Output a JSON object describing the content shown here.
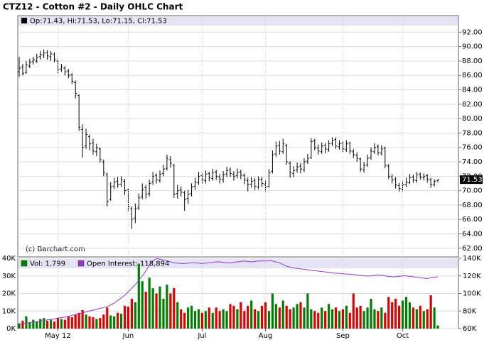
{
  "chart_data": [
    {
      "type": "ohlc",
      "title": "CTZ12 - Cotton #2 - Daily OHLC Chart",
      "info": "Op:71.43, Hi:71.53, Lo:71.15, Cl:71.53",
      "credit": "(c) Barchart.com",
      "color": "#000000",
      "grid": true,
      "ylim": [
        60.8,
        94.3
      ],
      "yticks": [
        {
          "value": 62,
          "label": "62.00"
        },
        {
          "value": 64,
          "label": "64.00"
        },
        {
          "value": 66,
          "label": "66.00"
        },
        {
          "value": 68,
          "label": "68.00"
        },
        {
          "value": 70,
          "label": "70.00"
        },
        {
          "value": 72,
          "label": "72.00"
        },
        {
          "value": 74,
          "label": "74.00"
        },
        {
          "value": 76,
          "label": "76.00"
        },
        {
          "value": 78,
          "label": "78.00"
        },
        {
          "value": 80,
          "label": "80.00"
        },
        {
          "value": 82,
          "label": "82.00"
        },
        {
          "value": 84,
          "label": "84.00"
        },
        {
          "value": 86,
          "label": "86.00"
        },
        {
          "value": 88,
          "label": "88.00"
        },
        {
          "value": 90,
          "label": "90.00"
        },
        {
          "value": 92,
          "label": "92.00"
        }
      ],
      "open": [
        86.5,
        87.2,
        86.4,
        87.3,
        87.9,
        88.0,
        88.6,
        88.8,
        89.2,
        88.6,
        88.9,
        88.0,
        86.9,
        87.0,
        86.6,
        86.1,
        85.0,
        83.2,
        78.5,
        76.2,
        77.5,
        76.6,
        75.4,
        75.8,
        74.0,
        72.2,
        68.8,
        70.6,
        71.3,
        70.9,
        71.3,
        70.1,
        67.5,
        66.2,
        67.6,
        69.2,
        70.4,
        69.6,
        71.2,
        72.1,
        71.4,
        72.4,
        73.1,
        74.3,
        73.5,
        69.6,
        70.1,
        69.7,
        68.9,
        69.6,
        70.6,
        71.1,
        72.1,
        71.4,
        72.4,
        71.7,
        72.6,
        71.9,
        71.5,
        72.3,
        72.9,
        72.3,
        72.1,
        72.6,
        72.1,
        71.4,
        70.9,
        71.4,
        70.5,
        71.6,
        70.9,
        70.6,
        72.7,
        75.1,
        76.3,
        75.4,
        76.3,
        73.8,
        72.4,
        72.9,
        73.4,
        72.9,
        74.1,
        74.6,
        76.9,
        75.9,
        75.4,
        76.3,
        75.7,
        76.6,
        77.1,
        76.1,
        76.6,
        75.7,
        76.6,
        75.4,
        74.9,
        74.4,
        72.9,
        73.6,
        74.6,
        75.4,
        76.1,
        75.2,
        75.9,
        73.4,
        71.9,
        71.6,
        70.7,
        70.2,
        70.9,
        71.1,
        71.9,
        71.4,
        72.3,
        71.8,
        72.1,
        71.5,
        70.8,
        71.43
      ],
      "high": [
        88.6,
        87.6,
        88.0,
        88.3,
        88.6,
        89.0,
        89.4,
        89.6,
        89.5,
        89.4,
        89.2,
        88.2,
        87.6,
        87.3,
        86.9,
        86.3,
        85.3,
        83.4,
        79.2,
        78.6,
        77.8,
        77.2,
        76.5,
        76.0,
        74.3,
        72.5,
        71.2,
        71.8,
        71.9,
        72.0,
        71.6,
        70.3,
        67.8,
        68.2,
        69.6,
        71.0,
        70.8,
        71.5,
        72.6,
        72.4,
        72.8,
        73.6,
        75.0,
        74.8,
        73.7,
        70.8,
        70.6,
        70.0,
        70.1,
        71.0,
        71.8,
        72.6,
        72.5,
        72.8,
        72.6,
        73.0,
        72.9,
        72.3,
        72.7,
        73.3,
        73.2,
        72.7,
        73.1,
        72.9,
        72.4,
        71.8,
        71.9,
        71.7,
        72.0,
        71.9,
        71.4,
        73.0,
        75.6,
        76.8,
        76.9,
        77.2,
        76.5,
        74.1,
        73.4,
        73.9,
        73.8,
        74.5,
        75.1,
        77.3,
        77.2,
        76.4,
        76.7,
        76.6,
        77.0,
        77.4,
        77.4,
        77.0,
        76.9,
        77.0,
        76.8,
        75.8,
        75.3,
        74.6,
        74.0,
        75.0,
        76.0,
        76.6,
        76.4,
        76.3,
        76.1,
        73.7,
        72.3,
        71.9,
        71.1,
        71.3,
        71.8,
        72.3,
        72.2,
        72.6,
        72.5,
        72.4,
        72.3,
        71.8,
        71.6,
        71.53
      ],
      "low": [
        85.8,
        86.0,
        86.2,
        87.0,
        87.5,
        87.7,
        88.2,
        88.4,
        88.2,
        88.0,
        87.8,
        86.3,
        86.5,
        86.0,
        85.6,
        84.8,
        82.8,
        78.3,
        74.6,
        75.8,
        75.6,
        75.0,
        74.8,
        73.9,
        72.0,
        67.8,
        68.6,
        70.2,
        70.4,
        70.5,
        69.4,
        67.2,
        64.7,
        65.5,
        67.3,
        68.8,
        68.9,
        69.2,
        70.8,
        71.0,
        71.1,
        72.0,
        72.8,
        73.2,
        69.0,
        68.9,
        69.2,
        67.2,
        68.2,
        69.2,
        70.1,
        70.8,
        71.0,
        71.0,
        71.3,
        71.4,
        71.5,
        71.0,
        71.1,
        71.9,
        71.9,
        71.4,
        71.7,
        71.6,
        70.9,
        69.9,
        70.4,
        70.1,
        70.2,
        70.5,
        69.9,
        70.4,
        72.4,
        74.7,
        75.0,
        75.1,
        73.6,
        71.8,
        71.9,
        72.5,
        72.4,
        72.6,
        73.7,
        74.4,
        75.6,
        75.0,
        75.1,
        75.2,
        75.4,
        76.2,
        75.8,
        75.7,
        75.3,
        75.4,
        75.1,
        74.5,
        74.0,
        72.6,
        72.5,
        73.3,
        74.3,
        75.1,
        74.9,
        74.9,
        73.1,
        71.6,
        71.0,
        70.3,
        69.9,
        69.9,
        70.5,
        70.9,
        71.1,
        71.1,
        71.5,
        71.4,
        71.1,
        70.4,
        70.6,
        71.15
      ],
      "close": [
        87.0,
        86.3,
        87.5,
        87.8,
        88.2,
        88.5,
        88.9,
        89.1,
        88.7,
        89.0,
        88.2,
        86.8,
        87.2,
        86.5,
        86.0,
        85.2,
        83.5,
        78.8,
        76.0,
        77.8,
        76.5,
        75.5,
        76.0,
        74.3,
        72.5,
        68.5,
        70.5,
        71.2,
        70.8,
        71.5,
        70.0,
        67.8,
        66.0,
        67.5,
        69.0,
        70.2,
        69.5,
        71.0,
        72.0,
        71.5,
        72.3,
        73.0,
        74.5,
        73.8,
        69.5,
        70.0,
        69.8,
        68.8,
        69.5,
        70.5,
        71.2,
        72.0,
        71.5,
        72.3,
        71.8,
        72.5,
        72.0,
        71.6,
        72.2,
        72.8,
        72.4,
        72.0,
        72.5,
        72.2,
        71.5,
        70.8,
        71.3,
        70.6,
        71.5,
        71.0,
        70.5,
        72.5,
        75.0,
        76.2,
        75.5,
        76.5,
        74.0,
        72.5,
        72.8,
        73.3,
        73.0,
        74.0,
        74.5,
        76.8,
        76.0,
        75.5,
        76.2,
        75.8,
        76.5,
        77.0,
        76.2,
        76.5,
        75.8,
        76.5,
        75.5,
        75.0,
        74.5,
        73.0,
        73.5,
        74.5,
        75.5,
        76.0,
        75.3,
        75.8,
        73.5,
        72.0,
        71.5,
        70.8,
        70.3,
        70.8,
        71.2,
        71.8,
        71.5,
        72.2,
        71.9,
        72.0,
        71.6,
        70.9,
        71.3,
        71.53
      ]
    },
    {
      "type": "volume",
      "up_color": "#008000",
      "down_color": "#e00000",
      "categories": [
        null,
        null,
        null,
        null,
        null,
        null,
        null,
        null,
        null,
        null,
        null,
        "May 12",
        null,
        null,
        null,
        null,
        null,
        null,
        null,
        null,
        null,
        null,
        null,
        null,
        null,
        null,
        null,
        null,
        null,
        null,
        null,
        "Jun",
        null,
        null,
        null,
        null,
        null,
        null,
        null,
        null,
        null,
        null,
        null,
        null,
        null,
        null,
        null,
        null,
        null,
        null,
        null,
        null,
        "Jul",
        null,
        null,
        null,
        null,
        null,
        null,
        null,
        null,
        null,
        null,
        null,
        null,
        null,
        null,
        null,
        null,
        null,
        "Aug",
        null,
        null,
        null,
        null,
        null,
        null,
        null,
        null,
        null,
        null,
        null,
        null,
        null,
        null,
        null,
        null,
        null,
        null,
        null,
        null,
        null,
        "Sep",
        null,
        null,
        null,
        null,
        null,
        null,
        null,
        null,
        null,
        null,
        null,
        null,
        null,
        null,
        null,
        null,
        "Oct",
        null,
        null,
        null,
        null,
        null,
        null,
        null,
        null,
        null,
        null
      ],
      "ylim": [
        0,
        40000
      ],
      "yticks": [
        {
          "value": 0,
          "label": "0K"
        },
        {
          "value": 10000,
          "label": "10K"
        },
        {
          "value": 20000,
          "label": "20K"
        },
        {
          "value": 30000,
          "label": "30K"
        },
        {
          "value": 40000,
          "label": "40K"
        }
      ],
      "y2lim": [
        60000,
        140000
      ],
      "y2ticks": [
        {
          "value": 60000,
          "label": "60K"
        },
        {
          "value": 80000,
          "label": "80K"
        },
        {
          "value": 100000,
          "label": "100K"
        },
        {
          "value": 120000,
          "label": "120K"
        },
        {
          "value": 140000,
          "label": "140K"
        }
      ],
      "series": [
        {
          "name": "Vol: 1,799",
          "color": "#008000",
          "values": [
            3000,
            4500,
            7000,
            3500,
            5000,
            4000,
            5500,
            6000,
            4500,
            5000,
            4000,
            6000,
            5500,
            5000,
            7000,
            6500,
            8000,
            9000,
            10500,
            8000,
            7000,
            6500,
            5500,
            6000,
            8000,
            12000,
            7500,
            7000,
            9000,
            8500,
            13000,
            12500,
            17000,
            15000,
            37000,
            27000,
            21000,
            29000,
            23000,
            20000,
            24000,
            17000,
            25000,
            20000,
            23000,
            15000,
            11000,
            9000,
            12000,
            13000,
            10000,
            11000,
            9000,
            10000,
            12000,
            9000,
            12000,
            10000,
            11000,
            10000,
            14000,
            13000,
            11000,
            15000,
            10000,
            13000,
            16000,
            11000,
            10000,
            13000,
            15000,
            10000,
            20000,
            14000,
            12000,
            16000,
            13000,
            11000,
            12000,
            14000,
            15000,
            12000,
            20000,
            11000,
            10000,
            9000,
            12000,
            10000,
            14000,
            11000,
            12000,
            10000,
            11000,
            13000,
            9000,
            20000,
            12000,
            13000,
            10000,
            12000,
            17000,
            11000,
            10000,
            12000,
            9000,
            18000,
            15000,
            17000,
            13000,
            16000,
            18000,
            15000,
            12000,
            11000,
            13000,
            10000,
            11000,
            19000,
            12000,
            1799
          ]
        },
        {
          "name": "Open Interest: 118,894",
          "color": "#9933cc",
          "axis": "y2",
          "values": [
            65000,
            66000,
            66500,
            67000,
            67500,
            68000,
            68500,
            69000,
            70000,
            70500,
            71000,
            72000,
            72500,
            73000,
            74000,
            75000,
            76000,
            77000,
            78000,
            79000,
            80000,
            81000,
            82000,
            83000,
            84000,
            85000,
            87000,
            89000,
            92000,
            95000,
            98000,
            102000,
            106000,
            110000,
            115000,
            120000,
            126000,
            132000,
            137000,
            140000,
            139000,
            138000,
            137000,
            136000,
            135000,
            134500,
            134000,
            134000,
            134500,
            135000,
            135000,
            134500,
            134000,
            134500,
            135000,
            135500,
            136000,
            136000,
            135500,
            135000,
            135000,
            135500,
            136000,
            136500,
            137000,
            136500,
            136000,
            136500,
            137000,
            137000,
            137000,
            137500,
            137000,
            136000,
            135000,
            133000,
            131000,
            130000,
            129000,
            128500,
            128000,
            127500,
            127000,
            126500,
            126000,
            125500,
            125000,
            124500,
            124000,
            123500,
            123000,
            123000,
            122500,
            122000,
            122000,
            121500,
            121000,
            120500,
            120000,
            120000,
            120000,
            120500,
            121000,
            120500,
            120000,
            119500,
            119000,
            119000,
            119500,
            120000,
            120000,
            119500,
            119000,
            118500,
            118000,
            117500,
            117000,
            118000,
            118500,
            118894
          ]
        }
      ]
    }
  ]
}
